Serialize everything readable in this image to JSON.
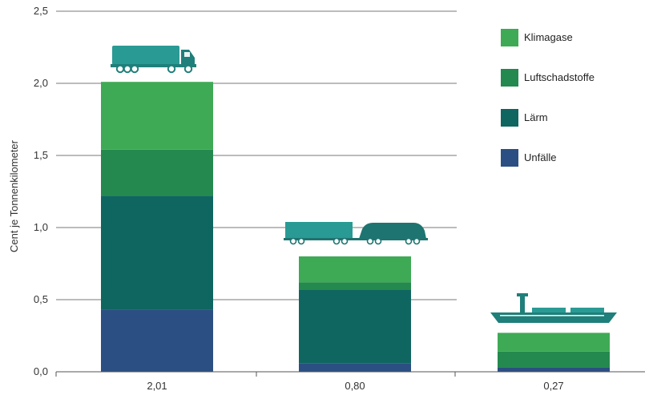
{
  "chart_data": {
    "type": "bar",
    "stacked": true,
    "title": "",
    "xlabel": "",
    "ylabel": "Cent je Tonnenkilometer",
    "ylim": [
      0,
      2.5
    ],
    "yticks": [
      "0,0",
      "0,5",
      "1,0",
      "1,5",
      "2,0",
      "2,5"
    ],
    "grid": true,
    "legend_position": "top-right",
    "categories": [
      "2,01",
      "0,80",
      "0,27"
    ],
    "category_icons": [
      "truck-icon",
      "train-icon",
      "ship-icon"
    ],
    "series": [
      {
        "name": "Unfälle",
        "color": "#2b4f82",
        "values": [
          0.43,
          0.06,
          0.03
        ]
      },
      {
        "name": "Lärm",
        "color": "#0f6560",
        "values": [
          0.79,
          0.51,
          0.0
        ]
      },
      {
        "name": "Luftschadstoffe",
        "color": "#24894e",
        "values": [
          0.32,
          0.05,
          0.11
        ]
      },
      {
        "name": "Klimagase",
        "color": "#3eaa55",
        "values": [
          0.47,
          0.18,
          0.13
        ]
      }
    ],
    "legend_order": [
      "Klimagase",
      "Luftschadstoffe",
      "Lärm",
      "Unfälle"
    ]
  }
}
